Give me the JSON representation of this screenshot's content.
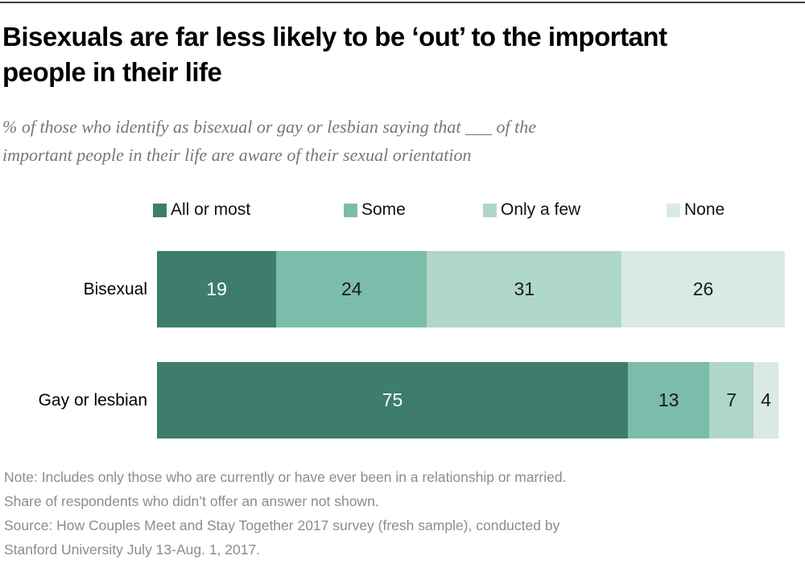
{
  "page": {
    "title_lines": {
      "0": "Bisexuals are far less likely to be ‘out’ to the important",
      "1": "people in their life"
    },
    "subtitle_lines": {
      "0": "% of those who identify as bisexual or gay or lesbian saying that ___ of the",
      "1": "important people in their life are aware of their sexual orientation"
    },
    "footer_lines": {
      "0": "Note: Includes only those who are currently or have ever been in a relationship or married.",
      "1": "Share of respondents who didn’t offer an answer not shown.",
      "2": "Source: How Couples Meet and Stay Together 2017 survey (fresh sample), conducted by",
      "3": "Stanford University July 13-Aug. 1, 2017."
    }
  },
  "chart_data": {
    "type": "bar",
    "orientation": "horizontal",
    "stacked": true,
    "title": "Bisexuals are far less likely to be ‘out’ to the important people in their life",
    "subtitle": "% of those who identify as bisexual or gay or lesbian saying that ___ of the important people in their life are aware of their sexual orientation",
    "categories": [
      "Bisexual",
      "Gay or lesbian"
    ],
    "series": [
      {
        "name": "All or most",
        "color": "#3E7D6C",
        "label_color": "#ffffff",
        "values": [
          19,
          75
        ]
      },
      {
        "name": "Some",
        "color": "#7BBCAB",
        "label_color": "#1a1a1a",
        "values": [
          24,
          13
        ]
      },
      {
        "name": "Only a few",
        "color": "#AFD7C8",
        "label_color": "#1a1a1a",
        "values": [
          31,
          7
        ]
      },
      {
        "name": "None",
        "color": "#D9EAE3",
        "label_color": "#1a1a1a",
        "values": [
          26,
          4
        ]
      }
    ],
    "xlim": [
      0,
      100
    ],
    "grid": false,
    "legend_position": "top",
    "value_labels": "inside-center"
  }
}
